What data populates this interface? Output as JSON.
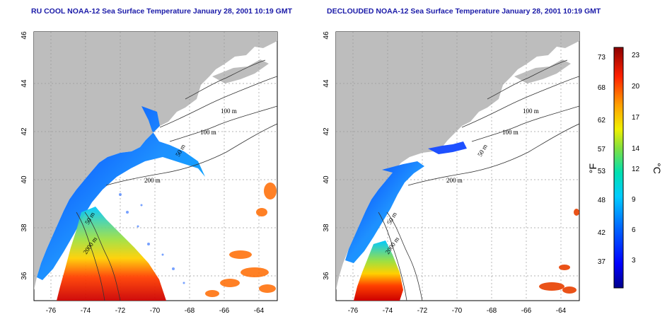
{
  "titles": {
    "left": "RU COOL NOAA-12 Sea Surface Temperature January 28, 2001 10:19 GMT",
    "right": "DECLOUDED NOAA-12 Sea Surface Temperature January 28, 2001 10:19 GMT"
  },
  "axes": {
    "lon_ticks": [
      "-76",
      "-74",
      "-72",
      "-70",
      "-68",
      "-66",
      "-64"
    ],
    "lat_ticks": [
      "36",
      "38",
      "40",
      "42",
      "44",
      "46"
    ]
  },
  "contours": {
    "labels": [
      "100 m",
      "100 m",
      "50 m",
      "200 m",
      "50 m",
      "2000 m"
    ]
  },
  "colorbar": {
    "fahrenheit_ticks": [
      "73",
      "68",
      "62",
      "57",
      "53",
      "48",
      "42",
      "37"
    ],
    "celsius_ticks": [
      "23",
      "20",
      "17",
      "14",
      "12",
      "9",
      "6",
      "3"
    ],
    "f_unit": "°F",
    "c_unit": "°C"
  },
  "colors": {
    "land": "#bdbdbd",
    "ocean": "#ffffff",
    "title": "#1a1aa8",
    "grid": "#9a9a9a"
  }
}
